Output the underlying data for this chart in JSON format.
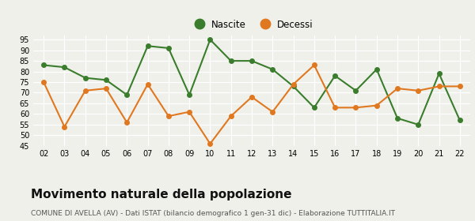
{
  "years": [
    "02",
    "03",
    "04",
    "05",
    "06",
    "07",
    "08",
    "09",
    "10",
    "11",
    "12",
    "13",
    "14",
    "15",
    "16",
    "17",
    "18",
    "19",
    "20",
    "21",
    "22"
  ],
  "nascite": [
    83,
    82,
    77,
    76,
    69,
    92,
    91,
    69,
    95,
    85,
    85,
    81,
    73,
    63,
    78,
    71,
    81,
    58,
    55,
    79,
    57
  ],
  "decessi": [
    75,
    54,
    71,
    72,
    56,
    74,
    59,
    61,
    46,
    59,
    68,
    61,
    74,
    83,
    63,
    63,
    64,
    72,
    71,
    73,
    73
  ],
  "nascite_color": "#3a7d2c",
  "decessi_color": "#e07820",
  "background_color": "#f0f0eb",
  "ylim": [
    45,
    97
  ],
  "yticks": [
    45,
    50,
    55,
    60,
    65,
    70,
    75,
    80,
    85,
    90,
    95
  ],
  "title": "Movimento naturale della popolazione",
  "subtitle": "COMUNE DI AVELLA (AV) - Dati ISTAT (bilancio demografico 1 gen-31 dic) - Elaborazione TUTTITALIA.IT",
  "legend_nascite": "Nascite",
  "legend_decessi": "Decessi",
  "title_fontsize": 11,
  "subtitle_fontsize": 6.5,
  "tick_fontsize": 7,
  "marker_size": 4,
  "line_width": 1.5
}
